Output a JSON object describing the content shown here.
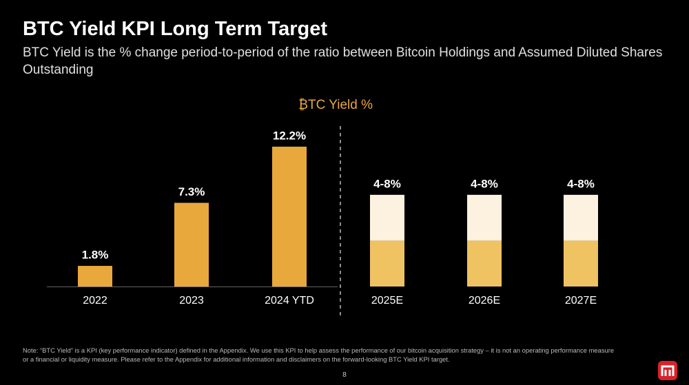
{
  "header": {
    "title": "BTC Yield KPI Long Term Target",
    "subtitle": "BTC Yield is the % change period-to-period of the ratio between Bitcoin Holdings and Assumed Diluted Shares Outstanding"
  },
  "chart_data": {
    "type": "bar",
    "title": "₿TC Yield %",
    "categories": [
      "2022",
      "2023",
      "2024 YTD",
      "2025E",
      "2026E",
      "2027E"
    ],
    "values": [
      1.8,
      7.3,
      12.2,
      null,
      null,
      null
    ],
    "range_low": [
      null,
      null,
      null,
      4,
      4,
      4
    ],
    "range_high": [
      null,
      null,
      null,
      8,
      8,
      8
    ],
    "value_labels": [
      "1.8%",
      "7.3%",
      "12.2%",
      "4-8%",
      "4-8%",
      "4-8%"
    ],
    "color": "#e9a83c",
    "range_low_color": "#efc262",
    "range_high_color": "#fdf1df",
    "ylim": [
      0,
      14
    ]
  },
  "note": [
    "Note: “BTC Yield” is a KPI (key performance indicator) defined in the Appendix.  We use this KPI to help assess the performance of our bitcoin acquisition strategy – it is not an operating performance measure",
    "or a financial or liquidity measure. Please refer to the Appendix for additional information and disclaimers on the forward-looking BTC Yield KPI target."
  ],
  "page_number": "8"
}
